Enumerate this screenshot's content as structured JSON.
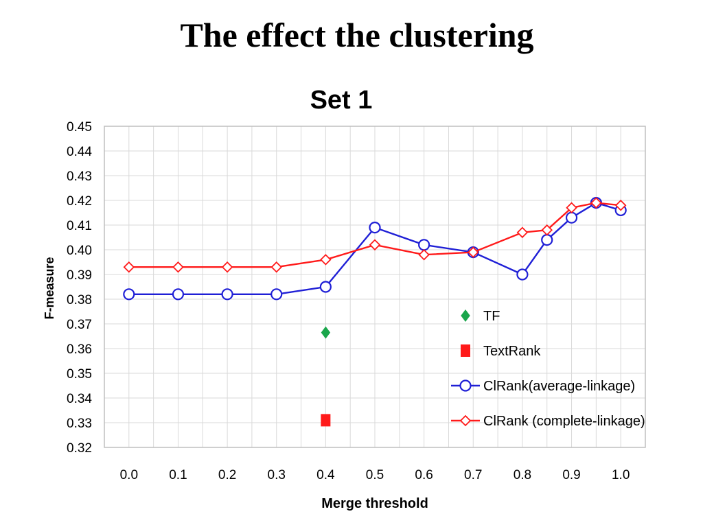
{
  "slide": {
    "title": "The effect the clustering"
  },
  "chart_data": {
    "type": "line",
    "title": "Set 1",
    "xlabel": "Merge threshold",
    "ylabel": "F-measure",
    "ylim": [
      0.32,
      0.45
    ],
    "xlim": [
      -0.05,
      1.05
    ],
    "grid": true,
    "legend_position": "bottom-right",
    "x_ticks": [
      "0.0",
      "0.1",
      "0.2",
      "0.3",
      "0.4",
      "0.5",
      "0.6",
      "0.7",
      "0.8",
      "0.9",
      "1.0"
    ],
    "x_tick_values": [
      0.0,
      0.1,
      0.2,
      0.3,
      0.4,
      0.5,
      0.6,
      0.7,
      0.8,
      0.9,
      1.0
    ],
    "y_ticks": [
      "0.32",
      "0.33",
      "0.34",
      "0.35",
      "0.36",
      "0.37",
      "0.38",
      "0.39",
      "0.40",
      "0.41",
      "0.42",
      "0.43",
      "0.44",
      "0.45"
    ],
    "y_tick_values": [
      0.32,
      0.33,
      0.34,
      0.35,
      0.36,
      0.37,
      0.38,
      0.39,
      0.4,
      0.41,
      0.42,
      0.43,
      0.44,
      0.45
    ],
    "series": [
      {
        "name": "TF",
        "kind": "point",
        "marker": "diamond-filled",
        "color": "#1aa64b",
        "x": [
          0.4
        ],
        "y": [
          0.3665
        ]
      },
      {
        "name": "TextRank",
        "kind": "point",
        "marker": "square-filled",
        "color": "#ff1a1a",
        "x": [
          0.4
        ],
        "y": [
          0.331
        ]
      },
      {
        "name": "ClRank(average-linkage)",
        "kind": "line",
        "marker": "circle-open",
        "color": "#1f1fd6",
        "x": [
          0.0,
          0.1,
          0.2,
          0.3,
          0.4,
          0.5,
          0.6,
          0.7,
          0.8,
          0.85,
          0.9,
          0.95,
          1.0
        ],
        "y": [
          0.382,
          0.382,
          0.382,
          0.382,
          0.385,
          0.409,
          0.402,
          0.399,
          0.39,
          0.404,
          0.413,
          0.419,
          0.416
        ]
      },
      {
        "name": "ClRank (complete-linkage)",
        "kind": "line",
        "marker": "diamond-open",
        "color": "#ff1a1a",
        "x": [
          0.0,
          0.1,
          0.2,
          0.3,
          0.4,
          0.5,
          0.6,
          0.7,
          0.8,
          0.85,
          0.9,
          0.95,
          1.0
        ],
        "y": [
          0.393,
          0.393,
          0.393,
          0.393,
          0.396,
          0.402,
          0.398,
          0.399,
          0.407,
          0.408,
          0.417,
          0.419,
          0.418
        ]
      }
    ]
  }
}
